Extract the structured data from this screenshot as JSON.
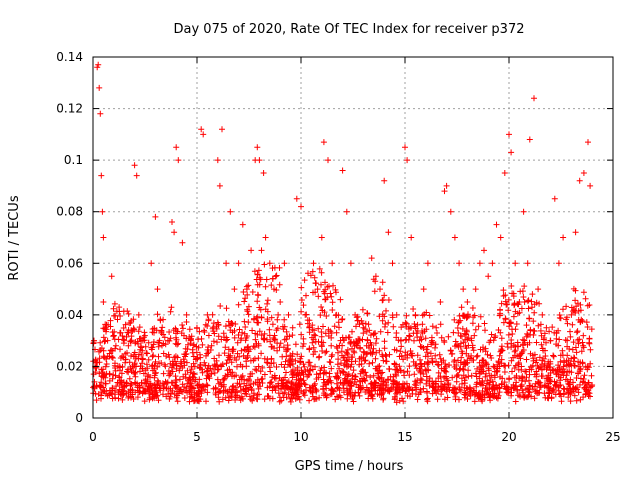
{
  "chart_data": {
    "type": "scatter",
    "title": "Day 075 of 2020, Rate Of TEC Index for receiver p372",
    "xlabel": "GPS time / hours",
    "ylabel": "ROTI / TECUs",
    "xlim": [
      0,
      25
    ],
    "ylim": [
      0,
      0.14
    ],
    "xticks": [
      0,
      5,
      10,
      15,
      20,
      25
    ],
    "yticks": [
      0,
      0.02,
      0.04,
      0.06,
      0.08,
      0.1,
      0.12,
      0.14
    ],
    "xtick_labels": [
      "0",
      "5",
      "10",
      "15",
      "20",
      "25"
    ],
    "ytick_labels": [
      "0",
      "0.02",
      "0.04",
      "0.06",
      "0.08",
      "0.1",
      "0.12",
      "0.14"
    ],
    "grid": true,
    "marker": "+",
    "series_color": "#ff0000",
    "series": [
      {
        "name": "ROTI",
        "note": "dense cloud 0.005-0.04 TECU over 0-24 h; representative points below",
        "x": [
          0.05,
          0.1,
          0.2,
          0.25,
          0.3,
          0.35,
          0.4,
          0.45,
          0.5,
          0.5,
          0.6,
          0.7,
          0.8,
          0.9,
          1.0,
          1.1,
          1.2,
          1.3,
          1.5,
          1.7,
          1.9,
          2.0,
          2.1,
          2.2,
          2.4,
          2.6,
          2.8,
          3.0,
          3.1,
          3.2,
          3.4,
          3.6,
          3.8,
          3.9,
          4.0,
          4.1,
          4.3,
          4.5,
          4.7,
          4.9,
          5.0,
          5.2,
          5.3,
          5.5,
          5.7,
          5.9,
          6.0,
          6.1,
          6.2,
          6.4,
          6.6,
          6.8,
          7.0,
          7.2,
          7.4,
          7.6,
          7.8,
          7.9,
          8.0,
          8.1,
          8.2,
          8.3,
          8.5,
          8.7,
          8.9,
          9.0,
          9.2,
          9.4,
          9.6,
          9.8,
          10.0,
          10.2,
          10.4,
          10.6,
          10.8,
          11.0,
          11.1,
          11.3,
          11.5,
          11.7,
          11.9,
          12.0,
          12.2,
          12.4,
          12.6,
          12.8,
          13.0,
          13.2,
          13.4,
          13.6,
          13.8,
          14.0,
          14.2,
          14.4,
          14.6,
          14.8,
          15.0,
          15.1,
          15.3,
          15.5,
          15.7,
          15.9,
          16.1,
          16.3,
          16.5,
          16.7,
          16.9,
          17.0,
          17.2,
          17.4,
          17.6,
          17.8,
          18.0,
          18.2,
          18.4,
          18.6,
          18.8,
          19.0,
          19.2,
          19.4,
          19.6,
          19.8,
          20.0,
          20.1,
          20.3,
          20.5,
          20.7,
          20.9,
          21.0,
          21.2,
          21.4,
          21.6,
          21.8,
          22.0,
          22.2,
          22.4,
          22.6,
          22.8,
          23.0,
          23.2,
          23.4,
          23.6,
          23.8,
          23.9
        ],
        "y": [
          0.03,
          0.02,
          0.136,
          0.137,
          0.128,
          0.118,
          0.094,
          0.08,
          0.07,
          0.045,
          0.035,
          0.03,
          0.025,
          0.055,
          0.032,
          0.028,
          0.02,
          0.033,
          0.03,
          0.028,
          0.02,
          0.098,
          0.094,
          0.04,
          0.03,
          0.025,
          0.06,
          0.078,
          0.05,
          0.03,
          0.025,
          0.03,
          0.076,
          0.072,
          0.105,
          0.1,
          0.068,
          0.04,
          0.03,
          0.02,
          0.035,
          0.112,
          0.11,
          0.04,
          0.028,
          0.02,
          0.1,
          0.09,
          0.112,
          0.06,
          0.08,
          0.05,
          0.06,
          0.075,
          0.05,
          0.065,
          0.1,
          0.105,
          0.1,
          0.065,
          0.095,
          0.07,
          0.06,
          0.05,
          0.04,
          0.045,
          0.06,
          0.04,
          0.035,
          0.085,
          0.082,
          0.04,
          0.035,
          0.06,
          0.05,
          0.07,
          0.107,
          0.1,
          0.06,
          0.04,
          0.03,
          0.096,
          0.08,
          0.06,
          0.04,
          0.03,
          0.035,
          0.03,
          0.062,
          0.055,
          0.05,
          0.092,
          0.072,
          0.06,
          0.04,
          0.03,
          0.105,
          0.1,
          0.07,
          0.04,
          0.03,
          0.05,
          0.06,
          0.03,
          0.035,
          0.045,
          0.088,
          0.09,
          0.08,
          0.07,
          0.06,
          0.05,
          0.045,
          0.03,
          0.05,
          0.06,
          0.065,
          0.055,
          0.06,
          0.075,
          0.07,
          0.095,
          0.11,
          0.103,
          0.06,
          0.045,
          0.08,
          0.06,
          0.108,
          0.124,
          0.05,
          0.04,
          0.035,
          0.03,
          0.085,
          0.06,
          0.07,
          0.03,
          0.04,
          0.072,
          0.092,
          0.095,
          0.107,
          0.09
        ]
      }
    ]
  }
}
